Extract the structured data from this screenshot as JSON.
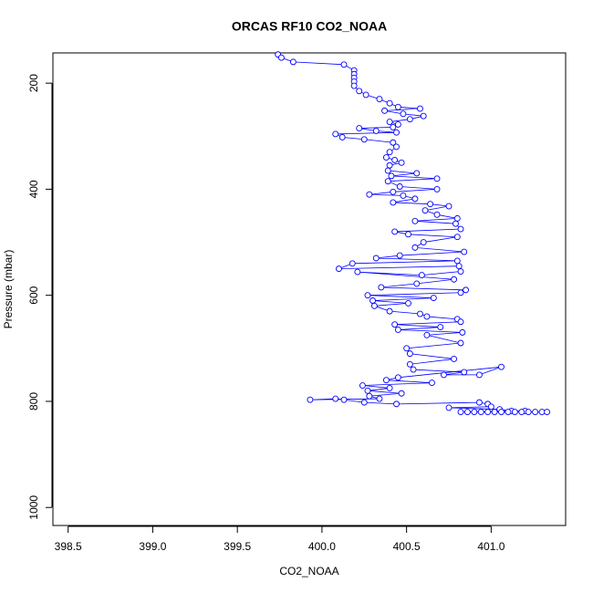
{
  "chart_data": {
    "type": "line",
    "title": "ORCAS RF10 CO2_NOAA",
    "x_label": "CO2_NOAA",
    "y_label": "Pressure (mbar)",
    "xlim": [
      398.41,
      401.44
    ],
    "xticks": [
      398.5,
      {
        "value": 399,
        "label": "399.0"
      },
      399.5,
      {
        "value": 400,
        "label": "400.0"
      },
      400.5,
      {
        "value": 401,
        "label": "401.0"
      }
    ],
    "ylim": [
      1034,
      143
    ],
    "yticks": [
      200,
      400,
      600,
      800,
      1000
    ],
    "series": [
      {
        "color": "#0000ff",
        "x": [
          399.74,
          399.76,
          399.83,
          400.13,
          400.19,
          400.19,
          400.19,
          400.19,
          400.19,
          400.22,
          400.26,
          400.34,
          400.4,
          400.45,
          400.58,
          400.37,
          400.48,
          400.6,
          400.52,
          400.4,
          400.45,
          400.42,
          400.22,
          400.32,
          400.44,
          400.08,
          400.12,
          400.25,
          400.42,
          400.44,
          400.4,
          400.38,
          400.43,
          400.47,
          400.4,
          400.39,
          400.56,
          400.41,
          400.68,
          400.39,
          400.46,
          400.68,
          400.42,
          400.28,
          400.48,
          400.55,
          400.42,
          400.64,
          400.75,
          400.61,
          400.68,
          400.8,
          400.55,
          400.79,
          400.82,
          400.43,
          400.51,
          400.8,
          400.6,
          400.55,
          400.84,
          400.46,
          400.32,
          400.8,
          400.18,
          400.1,
          400.81,
          400.82,
          400.59,
          400.21,
          400.78,
          400.56,
          400.35,
          400.85,
          400.82,
          400.27,
          400.66,
          400.3,
          400.51,
          400.31,
          400.4,
          400.58,
          400.62,
          400.8,
          400.82,
          400.43,
          400.7,
          400.45,
          400.83,
          400.62,
          400.82,
          400.5,
          400.52,
          400.78,
          400.52,
          400.54,
          400.84,
          400.72,
          400.93,
          401.06,
          400.45,
          400.38,
          400.65,
          400.24,
          400.4,
          400.27,
          400.47,
          400.28,
          400.34,
          399.93,
          400.08,
          400.13,
          400.25,
          400.44,
          400.93,
          400.98,
          401.0,
          400.75,
          401.05,
          401.12,
          401.2,
          400.82,
          400.86,
          400.9,
          400.94,
          400.98,
          401.02,
          401.06,
          401.1,
          401.14,
          401.18,
          401.22,
          401.26,
          401.3,
          401.33
        ],
        "values": [
          146,
          152,
          160,
          165,
          176,
          183,
          190,
          197,
          205,
          215,
          222,
          230,
          238,
          245,
          248,
          252,
          258,
          262,
          268,
          273,
          278,
          283,
          285,
          290,
          293,
          296,
          302,
          306,
          312,
          320,
          330,
          340,
          345,
          350,
          355,
          365,
          370,
          375,
          380,
          385,
          395,
          400,
          405,
          410,
          412,
          418,
          425,
          428,
          432,
          440,
          448,
          455,
          460,
          465,
          475,
          480,
          485,
          490,
          500,
          510,
          518,
          525,
          530,
          535,
          540,
          550,
          545,
          555,
          562,
          556,
          570,
          578,
          585,
          590,
          595,
          600,
          605,
          610,
          615,
          620,
          630,
          635,
          640,
          645,
          650,
          655,
          660,
          665,
          670,
          675,
          690,
          700,
          710,
          720,
          730,
          740,
          745,
          750,
          750,
          735,
          755,
          760,
          765,
          770,
          775,
          780,
          785,
          790,
          795,
          797,
          795,
          797,
          802,
          805,
          802,
          805,
          810,
          812,
          815,
          818,
          818,
          820,
          820,
          820,
          820,
          820,
          820,
          820,
          820,
          820,
          820,
          820,
          820,
          820,
          820
        ]
      }
    ]
  }
}
